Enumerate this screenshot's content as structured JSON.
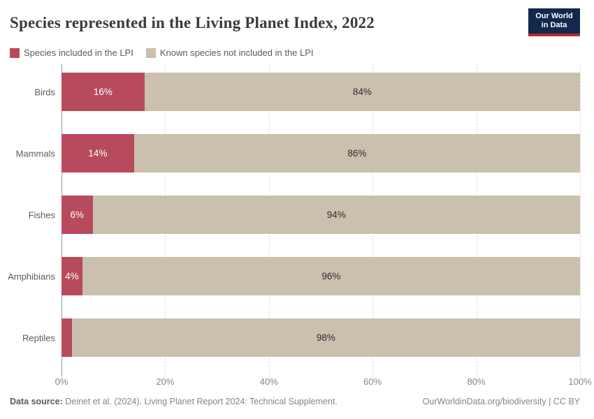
{
  "header": {
    "title": "Species represented in the Living Planet Index, 2022",
    "logo_line1": "Our World",
    "logo_line2": "in Data"
  },
  "colors": {
    "included": "#b84a5e",
    "not_included": "#cbbfae",
    "logo_navy": "#12284c",
    "logo_red": "#b5292e"
  },
  "legend": {
    "items": [
      {
        "label": "Species included in the LPI",
        "color": "#b84a5e"
      },
      {
        "label": "Known species not included in the LPI",
        "color": "#cbbfae"
      }
    ]
  },
  "chart_data": {
    "type": "bar",
    "orientation": "horizontal",
    "stacked": true,
    "title": "Species represented in the Living Planet Index, 2022",
    "categories": [
      "Birds",
      "Mammals",
      "Fishes",
      "Amphibians",
      "Reptiles"
    ],
    "series": [
      {
        "name": "Species included in the LPI",
        "color": "#b84a5e",
        "values": [
          16,
          14,
          6,
          4,
          2
        ]
      },
      {
        "name": "Known species not included in the LPI",
        "color": "#cbbfae",
        "values": [
          84,
          86,
          94,
          96,
          98
        ]
      }
    ],
    "bar_labels": {
      "included": [
        "16%",
        "14%",
        "6%",
        "4%",
        ""
      ],
      "not_included": [
        "84%",
        "86%",
        "94%",
        "96%",
        "98%"
      ]
    },
    "x_ticks": [
      "0%",
      "20%",
      "40%",
      "60%",
      "80%",
      "100%"
    ],
    "x_tick_values": [
      0,
      20,
      40,
      60,
      80,
      100
    ],
    "xlim": [
      0,
      100
    ],
    "grid": "vertical-dashed",
    "legend_position": "top"
  },
  "footer": {
    "datasource_label": "Data source:",
    "datasource_text": "Deinet et al. (2024). Living Planet Report 2024: Technical Supplement.",
    "attribution": "OurWorldinData.org/biodiversity | CC BY"
  }
}
